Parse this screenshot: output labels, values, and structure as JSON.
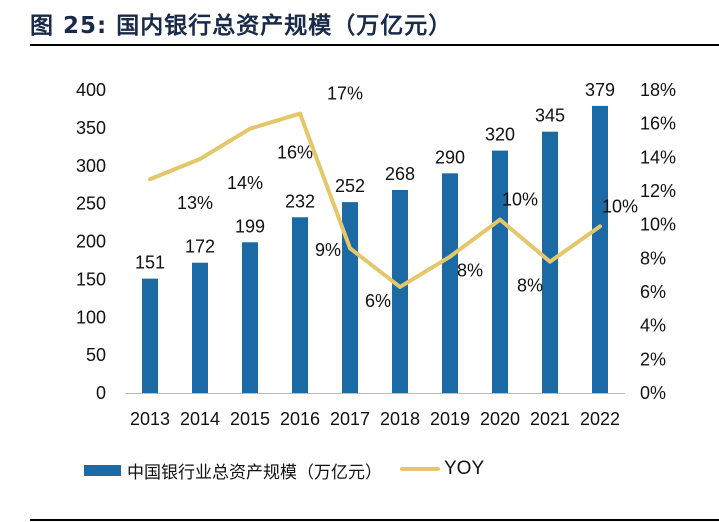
{
  "title": "图 25: 国内银行总资产规模（万亿元）",
  "colors": {
    "bar": "#1b6aa5",
    "line": "#e3c76a",
    "title": "#1a2a4a"
  },
  "chart_data": {
    "type": "bar+line",
    "categories": [
      "2013",
      "2014",
      "2015",
      "2016",
      "2017",
      "2018",
      "2019",
      "2020",
      "2021",
      "2022"
    ],
    "series": [
      {
        "name": "中国银行业总资产规模（万亿元）",
        "type": "bar",
        "axis": "left",
        "values": [
          151,
          172,
          199,
          232,
          252,
          268,
          290,
          320,
          345,
          379
        ],
        "labels": [
          "151",
          "172",
          "199",
          "232",
          "252",
          "268",
          "290",
          "320",
          "345",
          "379"
        ]
      },
      {
        "name": "YOY",
        "type": "line",
        "axis": "right",
        "values": [
          12.7,
          13.9,
          15.7,
          16.6,
          8.6,
          6.3,
          8.1,
          10.3,
          7.8,
          9.9
        ],
        "labels": [
          "13%",
          "14%",
          "16%",
          "17%",
          "9%",
          "6%",
          "8%",
          "10%",
          "8%",
          "10%"
        ]
      }
    ],
    "left_axis": {
      "ylim": [
        0,
        400
      ],
      "ticks": [
        "0",
        "50",
        "100",
        "150",
        "200",
        "250",
        "300",
        "350",
        "400"
      ]
    },
    "right_axis": {
      "ylim": [
        0,
        18
      ],
      "ticks": [
        "0%",
        "2%",
        "4%",
        "6%",
        "8%",
        "10%",
        "12%",
        "14%",
        "16%",
        "18%"
      ]
    },
    "grid": false,
    "legend": "bottom"
  }
}
